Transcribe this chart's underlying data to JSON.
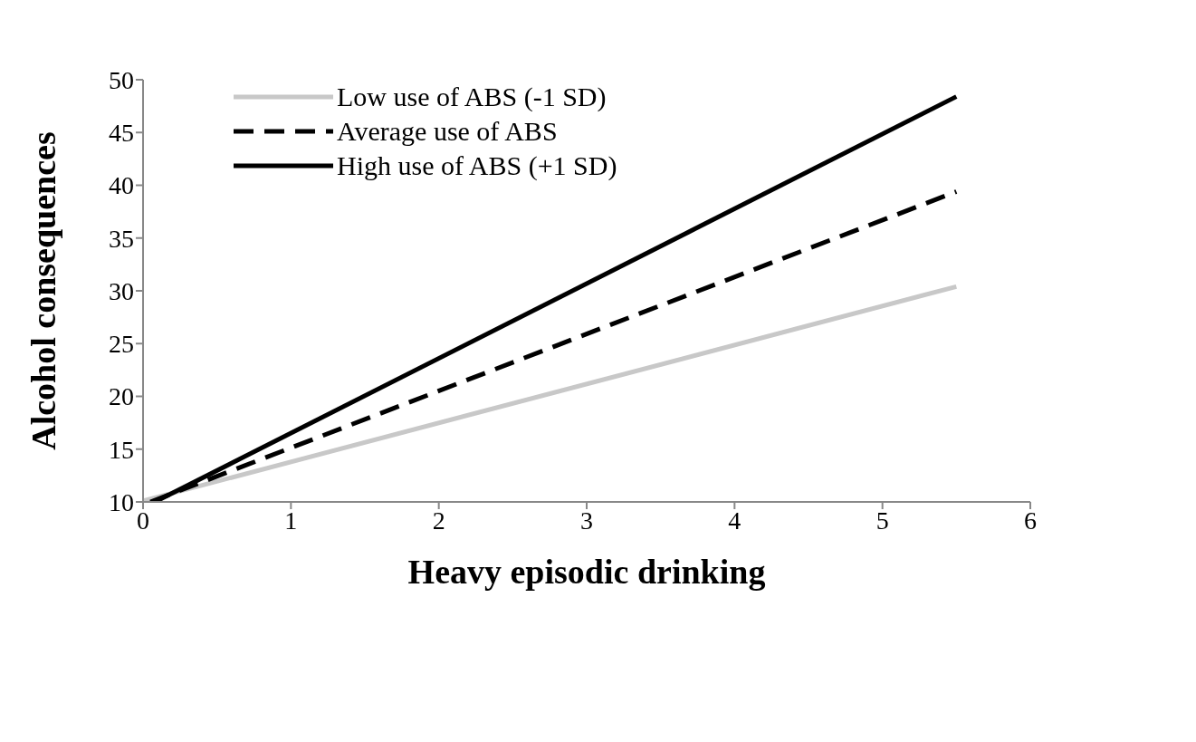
{
  "chart_data": {
    "type": "line",
    "xlabel": "Heavy episodic drinking",
    "ylabel": "Alcohol consequences",
    "xlim": [
      0,
      6
    ],
    "xticks": [
      0,
      1,
      2,
      3,
      4,
      5,
      6
    ],
    "ylim": [
      10,
      50
    ],
    "yticks": [
      10,
      15,
      20,
      25,
      30,
      35,
      40,
      45,
      50
    ],
    "grid": false,
    "legend": "top left",
    "marker": "none",
    "series": [
      {
        "name": "Low use of ABS (-1 SD)",
        "color": "#c8c8c8",
        "line_style": "solid",
        "x": [
          0,
          5.5
        ],
        "values": [
          10.1,
          30.4
        ]
      },
      {
        "name": "Average use of ABS",
        "color": "#000000",
        "line_style": "dashed",
        "x": [
          0.05,
          5.5
        ],
        "values": [
          10,
          39.4
        ]
      },
      {
        "name": "High use of ABS (+1 SD)",
        "color": "#000000",
        "line_style": "solid",
        "x": [
          0.08,
          5.5
        ],
        "values": [
          10,
          48.4
        ]
      }
    ]
  }
}
